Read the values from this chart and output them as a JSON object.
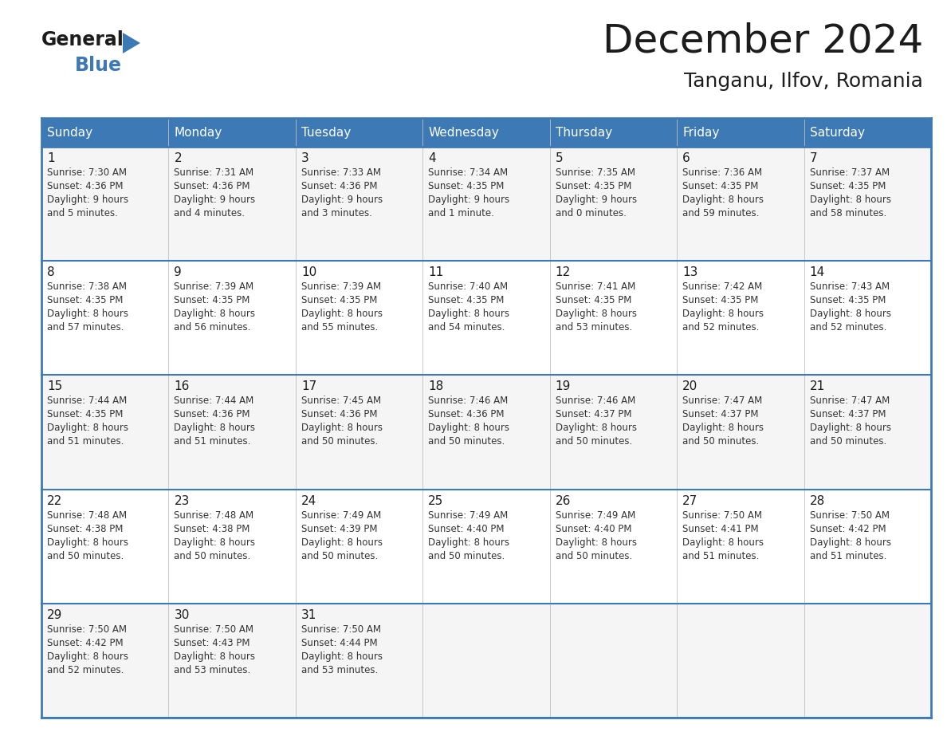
{
  "title": "December 2024",
  "subtitle": "Tanganu, Ilfov, Romania",
  "header_color": "#3d7ab5",
  "header_text_color": "#ffffff",
  "day_names": [
    "Sunday",
    "Monday",
    "Tuesday",
    "Wednesday",
    "Thursday",
    "Friday",
    "Saturday"
  ],
  "bg_color": "#ffffff",
  "border_color": "#3d7ab5",
  "text_color": "#333333",
  "days": [
    {
      "day": 1,
      "col": 0,
      "row": 0,
      "sunrise": "7:30 AM",
      "sunset": "4:36 PM",
      "daylight": "9 hours and 5 minutes."
    },
    {
      "day": 2,
      "col": 1,
      "row": 0,
      "sunrise": "7:31 AM",
      "sunset": "4:36 PM",
      "daylight": "9 hours and 4 minutes."
    },
    {
      "day": 3,
      "col": 2,
      "row": 0,
      "sunrise": "7:33 AM",
      "sunset": "4:36 PM",
      "daylight": "9 hours and 3 minutes."
    },
    {
      "day": 4,
      "col": 3,
      "row": 0,
      "sunrise": "7:34 AM",
      "sunset": "4:35 PM",
      "daylight": "9 hours and 1 minute."
    },
    {
      "day": 5,
      "col": 4,
      "row": 0,
      "sunrise": "7:35 AM",
      "sunset": "4:35 PM",
      "daylight": "9 hours and 0 minutes."
    },
    {
      "day": 6,
      "col": 5,
      "row": 0,
      "sunrise": "7:36 AM",
      "sunset": "4:35 PM",
      "daylight": "8 hours and 59 minutes."
    },
    {
      "day": 7,
      "col": 6,
      "row": 0,
      "sunrise": "7:37 AM",
      "sunset": "4:35 PM",
      "daylight": "8 hours and 58 minutes."
    },
    {
      "day": 8,
      "col": 0,
      "row": 1,
      "sunrise": "7:38 AM",
      "sunset": "4:35 PM",
      "daylight": "8 hours and 57 minutes."
    },
    {
      "day": 9,
      "col": 1,
      "row": 1,
      "sunrise": "7:39 AM",
      "sunset": "4:35 PM",
      "daylight": "8 hours and 56 minutes."
    },
    {
      "day": 10,
      "col": 2,
      "row": 1,
      "sunrise": "7:39 AM",
      "sunset": "4:35 PM",
      "daylight": "8 hours and 55 minutes."
    },
    {
      "day": 11,
      "col": 3,
      "row": 1,
      "sunrise": "7:40 AM",
      "sunset": "4:35 PM",
      "daylight": "8 hours and 54 minutes."
    },
    {
      "day": 12,
      "col": 4,
      "row": 1,
      "sunrise": "7:41 AM",
      "sunset": "4:35 PM",
      "daylight": "8 hours and 53 minutes."
    },
    {
      "day": 13,
      "col": 5,
      "row": 1,
      "sunrise": "7:42 AM",
      "sunset": "4:35 PM",
      "daylight": "8 hours and 52 minutes."
    },
    {
      "day": 14,
      "col": 6,
      "row": 1,
      "sunrise": "7:43 AM",
      "sunset": "4:35 PM",
      "daylight": "8 hours and 52 minutes."
    },
    {
      "day": 15,
      "col": 0,
      "row": 2,
      "sunrise": "7:44 AM",
      "sunset": "4:35 PM",
      "daylight": "8 hours and 51 minutes."
    },
    {
      "day": 16,
      "col": 1,
      "row": 2,
      "sunrise": "7:44 AM",
      "sunset": "4:36 PM",
      "daylight": "8 hours and 51 minutes."
    },
    {
      "day": 17,
      "col": 2,
      "row": 2,
      "sunrise": "7:45 AM",
      "sunset": "4:36 PM",
      "daylight": "8 hours and 50 minutes."
    },
    {
      "day": 18,
      "col": 3,
      "row": 2,
      "sunrise": "7:46 AM",
      "sunset": "4:36 PM",
      "daylight": "8 hours and 50 minutes."
    },
    {
      "day": 19,
      "col": 4,
      "row": 2,
      "sunrise": "7:46 AM",
      "sunset": "4:37 PM",
      "daylight": "8 hours and 50 minutes."
    },
    {
      "day": 20,
      "col": 5,
      "row": 2,
      "sunrise": "7:47 AM",
      "sunset": "4:37 PM",
      "daylight": "8 hours and 50 minutes."
    },
    {
      "day": 21,
      "col": 6,
      "row": 2,
      "sunrise": "7:47 AM",
      "sunset": "4:37 PM",
      "daylight": "8 hours and 50 minutes."
    },
    {
      "day": 22,
      "col": 0,
      "row": 3,
      "sunrise": "7:48 AM",
      "sunset": "4:38 PM",
      "daylight": "8 hours and 50 minutes."
    },
    {
      "day": 23,
      "col": 1,
      "row": 3,
      "sunrise": "7:48 AM",
      "sunset": "4:38 PM",
      "daylight": "8 hours and 50 minutes."
    },
    {
      "day": 24,
      "col": 2,
      "row": 3,
      "sunrise": "7:49 AM",
      "sunset": "4:39 PM",
      "daylight": "8 hours and 50 minutes."
    },
    {
      "day": 25,
      "col": 3,
      "row": 3,
      "sunrise": "7:49 AM",
      "sunset": "4:40 PM",
      "daylight": "8 hours and 50 minutes."
    },
    {
      "day": 26,
      "col": 4,
      "row": 3,
      "sunrise": "7:49 AM",
      "sunset": "4:40 PM",
      "daylight": "8 hours and 50 minutes."
    },
    {
      "day": 27,
      "col": 5,
      "row": 3,
      "sunrise": "7:50 AM",
      "sunset": "4:41 PM",
      "daylight": "8 hours and 51 minutes."
    },
    {
      "day": 28,
      "col": 6,
      "row": 3,
      "sunrise": "7:50 AM",
      "sunset": "4:42 PM",
      "daylight": "8 hours and 51 minutes."
    },
    {
      "day": 29,
      "col": 0,
      "row": 4,
      "sunrise": "7:50 AM",
      "sunset": "4:42 PM",
      "daylight": "8 hours and 52 minutes."
    },
    {
      "day": 30,
      "col": 1,
      "row": 4,
      "sunrise": "7:50 AM",
      "sunset": "4:43 PM",
      "daylight": "8 hours and 53 minutes."
    },
    {
      "day": 31,
      "col": 2,
      "row": 4,
      "sunrise": "7:50 AM",
      "sunset": "4:44 PM",
      "daylight": "8 hours and 53 minutes."
    }
  ]
}
